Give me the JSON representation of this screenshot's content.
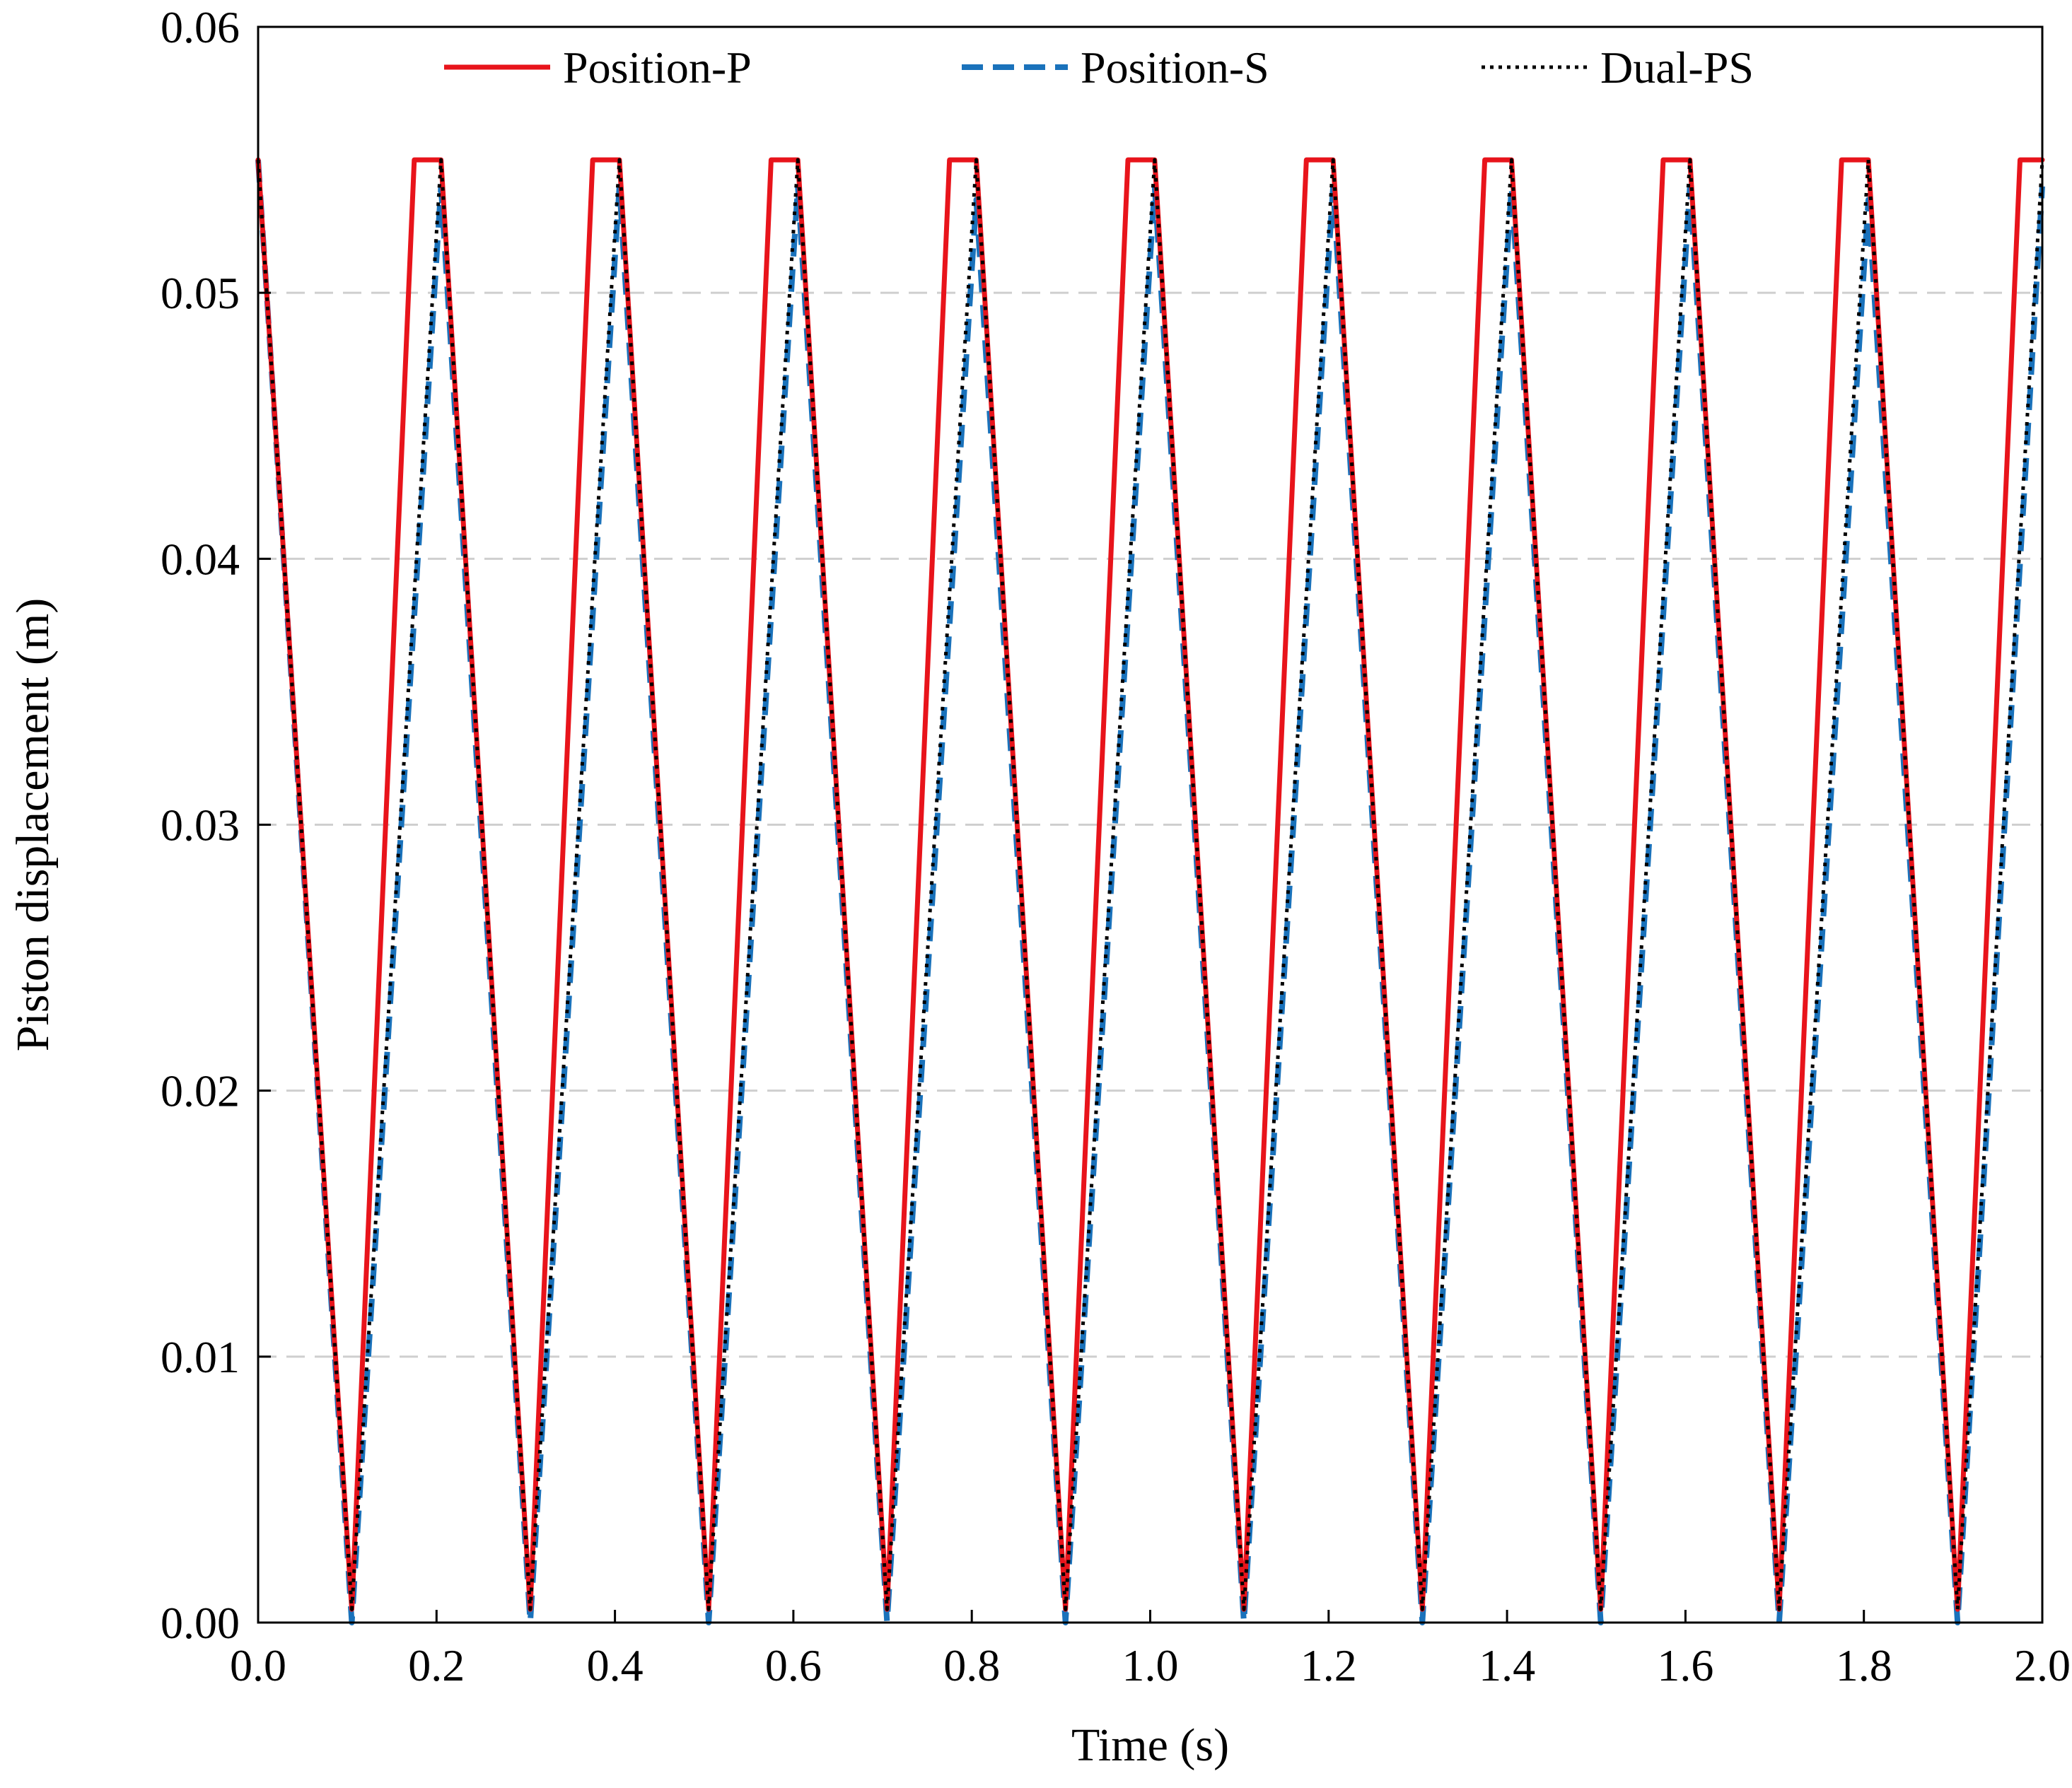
{
  "chart_data": {
    "type": "line",
    "title": "",
    "xlabel": "Time (s)",
    "ylabel": "Piston displacement (m)",
    "xlim": [
      0,
      2.0
    ],
    "ylim": [
      0,
      0.06
    ],
    "x_ticks": [
      "0.0",
      "0.2",
      "0.4",
      "0.6",
      "0.8",
      "1.0",
      "1.2",
      "1.4",
      "1.6",
      "1.8",
      "2.0"
    ],
    "y_ticks": [
      "0.00",
      "0.01",
      "0.02",
      "0.03",
      "0.04",
      "0.05",
      "0.06"
    ],
    "grid": "horizontal-dashed",
    "legend_position": "top",
    "series": [
      {
        "name": "Position-P",
        "color": "#e8141b",
        "style": "solid",
        "x": [
          0.0,
          0.105,
          0.175,
          0.205,
          0.305,
          0.375,
          0.405,
          0.505,
          0.575,
          0.605,
          0.705,
          0.775,
          0.805,
          0.905,
          0.975,
          1.005,
          1.105,
          1.175,
          1.205,
          1.305,
          1.375,
          1.405,
          1.505,
          1.575,
          1.605,
          1.705,
          1.775,
          1.805,
          1.905,
          1.975,
          2.0
        ],
        "y": [
          0.055,
          0.0005,
          0.055,
          0.055,
          0.0005,
          0.055,
          0.055,
          0.0005,
          0.055,
          0.055,
          0.0005,
          0.055,
          0.055,
          0.0005,
          0.055,
          0.055,
          0.0005,
          0.055,
          0.055,
          0.0005,
          0.055,
          0.055,
          0.0005,
          0.055,
          0.055,
          0.0005,
          0.055,
          0.055,
          0.0005,
          0.055,
          0.055
        ]
      },
      {
        "name": "Position-S",
        "color": "#1a72bb",
        "style": "dashed",
        "x": [
          0.0,
          0.105,
          0.205,
          0.305,
          0.405,
          0.505,
          0.605,
          0.705,
          0.805,
          0.905,
          1.005,
          1.105,
          1.205,
          1.305,
          1.405,
          1.505,
          1.605,
          1.705,
          1.805,
          1.905,
          2.0
        ],
        "y": [
          0.055,
          0.0,
          0.054,
          0.0,
          0.054,
          0.0,
          0.054,
          0.0,
          0.0535,
          0.0,
          0.054,
          0.0,
          0.054,
          0.0,
          0.054,
          0.0,
          0.054,
          0.0,
          0.0535,
          0.0,
          0.054
        ]
      },
      {
        "name": "Dual-PS",
        "color": "#000000",
        "style": "dotted",
        "x": [
          0.0,
          0.105,
          0.205,
          0.305,
          0.405,
          0.505,
          0.605,
          0.705,
          0.805,
          0.905,
          1.005,
          1.105,
          1.205,
          1.305,
          1.405,
          1.505,
          1.605,
          1.705,
          1.805,
          1.905,
          2.0
        ],
        "y": [
          0.055,
          0.0005,
          0.055,
          0.0005,
          0.055,
          0.0005,
          0.055,
          0.0005,
          0.055,
          0.0005,
          0.055,
          0.0005,
          0.055,
          0.0005,
          0.055,
          0.0005,
          0.055,
          0.0005,
          0.055,
          0.0005,
          0.055
        ]
      }
    ]
  }
}
